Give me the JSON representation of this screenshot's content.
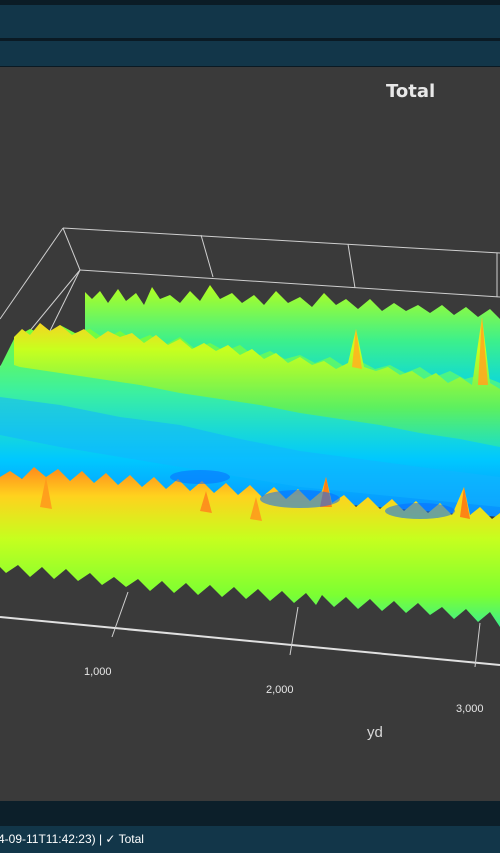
{
  "chart_data": {
    "type": "surface",
    "title": "Total",
    "xlabel": "yd",
    "x_ticks": [
      "1,000",
      "2,000",
      "3,000"
    ],
    "colorscale": [
      "#0a6cff",
      "#00c8ff",
      "#3cf08c",
      "#b4ff1e",
      "#ffd21e",
      "#ff7a14",
      "#e03c14"
    ],
    "description_series": [
      {
        "name": "front band",
        "level": "high"
      },
      {
        "name": "middle trough",
        "level": "low"
      },
      {
        "name": "back band",
        "level": "high"
      }
    ]
  },
  "status": {
    "text": "4-09-11T11:42:23) | ✓ Total"
  }
}
